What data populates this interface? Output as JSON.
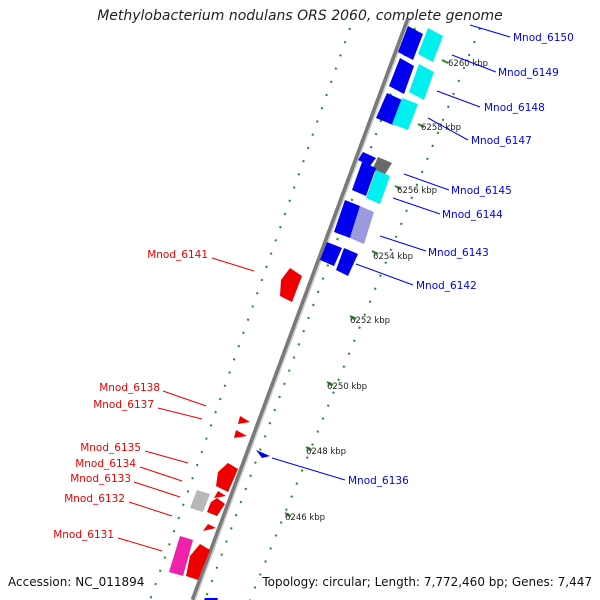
{
  "title": "Methylobacterium nodulans ORS 2060, complete genome",
  "accession": "Accession: NC_011894",
  "topology": "Topology: circular; Length: 7,772,460 bp; Genes: 7,447",
  "ticks": [
    "6246 kbp",
    "6248 kbp",
    "6250 kbp",
    "6252 kbp",
    "6254 kbp",
    "6256 kbp",
    "6258 kbp",
    "6260 kbp"
  ],
  "genes_forward": [
    "Mnod_6150",
    "Mnod_6149",
    "Mnod_6148",
    "Mnod_6147",
    "Mnod_6145",
    "Mnod_6144",
    "Mnod_6143",
    "Mnod_6142",
    "Mnod_6136"
  ],
  "genes_reverse": [
    "Mnod_6141",
    "Mnod_6138",
    "Mnod_6137",
    "Mnod_6135",
    "Mnod_6134",
    "Mnod_6133",
    "Mnod_6132",
    "Mnod_6131"
  ],
  "colors": {
    "forward": "#0000ee",
    "reverse": "#ee0000",
    "cyan": "#00f0f0",
    "magenta": "#ee22aa",
    "grey": "#b8b8b8",
    "backbone": "#888888",
    "dots": "#228b22"
  }
}
